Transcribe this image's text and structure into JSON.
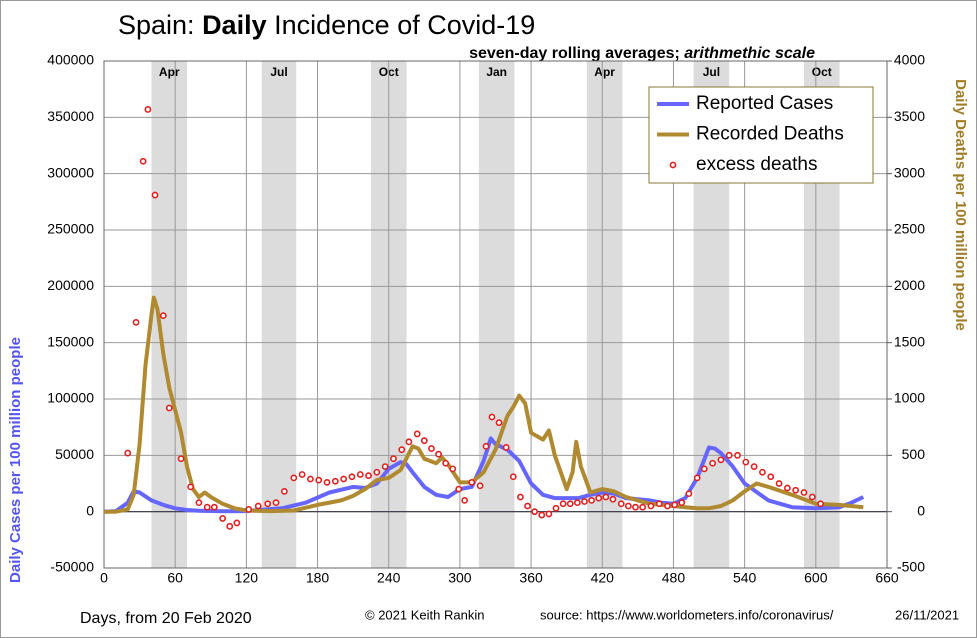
{
  "chart_data": {
    "type": "line",
    "title_parts": [
      "Spain: ",
      "Daily",
      " Incidence of Covid-19"
    ],
    "subtitle_parts": [
      "seven-day rolling averages; ",
      "arithmethic scale"
    ],
    "xlabel": "Days, from 20 Feb 2020",
    "ylabel": "Daily Cases per 100 million people",
    "y2label": "Daily Deaths per 100 million people",
    "footer": [
      "© 2021  Keith Rankin",
      "source:  https://www.worldometers.info/coronavirus/",
      "26/11/2021"
    ],
    "xlim": [
      0,
      660
    ],
    "xticks": [
      0,
      60,
      120,
      180,
      240,
      300,
      360,
      420,
      480,
      540,
      600,
      660
    ],
    "ylim": [
      -50000,
      400000
    ],
    "yticks": [
      -50000,
      0,
      50000,
      100000,
      150000,
      200000,
      250000,
      300000,
      350000,
      400000
    ],
    "y2lim": [
      -500,
      4000
    ],
    "y2ticks": [
      -500,
      0,
      500,
      1000,
      1500,
      2000,
      2500,
      3000,
      3500,
      4000
    ],
    "grid": true,
    "legend": "upper right",
    "bands": [
      {
        "label": "Apr",
        "start": 40,
        "end": 70
      },
      {
        "label": "Jul",
        "start": 133,
        "end": 162
      },
      {
        "label": "Oct",
        "start": 225,
        "end": 255
      },
      {
        "label": "Jan",
        "start": 316,
        "end": 346
      },
      {
        "label": "Apr",
        "start": 407,
        "end": 437
      },
      {
        "label": "Jul",
        "start": 497,
        "end": 527
      },
      {
        "label": "Oct",
        "start": 590,
        "end": 620
      }
    ],
    "series": [
      {
        "name": "Reported Cases",
        "color": "#6666ff",
        "kind": "line",
        "x": [
          0,
          10,
          20,
          25,
          30,
          40,
          50,
          60,
          70,
          80,
          100,
          120,
          130,
          150,
          170,
          190,
          210,
          220,
          230,
          240,
          250,
          255,
          260,
          270,
          280,
          290,
          300,
          310,
          320,
          326,
          330,
          340,
          350,
          360,
          370,
          380,
          400,
          410,
          420,
          430,
          440,
          460,
          470,
          480,
          490,
          500,
          510,
          515,
          520,
          530,
          540,
          560,
          580,
          600,
          620,
          630,
          640
        ],
        "values": [
          0,
          500,
          8000,
          18000,
          17000,
          10000,
          6000,
          3000,
          1500,
          800,
          300,
          500,
          1500,
          3000,
          8000,
          17000,
          22000,
          21000,
          25000,
          38000,
          44000,
          42000,
          35000,
          22000,
          15000,
          13000,
          20000,
          22000,
          45000,
          65000,
          60000,
          55000,
          45000,
          25000,
          15000,
          12000,
          12000,
          15000,
          17000,
          16000,
          12000,
          10000,
          8000,
          7000,
          12000,
          30000,
          57000,
          56000,
          52000,
          40000,
          25000,
          10000,
          4000,
          3000,
          4000,
          8000,
          13000
        ]
      },
      {
        "name": "Recorded Deaths",
        "color": "#b08a30",
        "kind": "line",
        "axis": "y2",
        "x": [
          0,
          10,
          20,
          25,
          30,
          35,
          40,
          42,
          45,
          50,
          55,
          60,
          65,
          70,
          75,
          80,
          85,
          90,
          100,
          110,
          120,
          140,
          160,
          180,
          200,
          210,
          220,
          230,
          240,
          250,
          260,
          265,
          270,
          280,
          285,
          290,
          300,
          310,
          320,
          330,
          340,
          345,
          350,
          355,
          360,
          370,
          375,
          380,
          390,
          395,
          398,
          402,
          410,
          420,
          430,
          440,
          450,
          460,
          470,
          480,
          490,
          500,
          510,
          520,
          530,
          540,
          550,
          560,
          580,
          600,
          620,
          640
        ],
        "values": [
          0,
          0,
          20,
          150,
          600,
          1300,
          1750,
          1900,
          1800,
          1400,
          1100,
          900,
          700,
          400,
          200,
          130,
          170,
          130,
          70,
          30,
          10,
          5,
          10,
          60,
          100,
          140,
          200,
          280,
          300,
          370,
          580,
          560,
          470,
          430,
          480,
          420,
          260,
          260,
          350,
          550,
          850,
          930,
          1030,
          960,
          700,
          640,
          720,
          500,
          200,
          350,
          620,
          400,
          170,
          200,
          180,
          130,
          100,
          70,
          60,
          50,
          40,
          30,
          30,
          50,
          100,
          180,
          250,
          220,
          150,
          70,
          60,
          40
        ]
      },
      {
        "name": "excess deaths",
        "color": "#e02020",
        "kind": "scatter",
        "axis": "y2",
        "x": [
          20,
          27,
          33,
          37,
          43,
          50,
          55,
          65,
          73,
          80,
          87,
          93,
          100,
          106,
          112,
          122,
          130,
          138,
          145,
          152,
          160,
          167,
          174,
          181,
          188,
          195,
          202,
          209,
          216,
          223,
          230,
          237,
          244,
          251,
          257,
          264,
          270,
          276,
          282,
          288,
          294,
          299,
          304,
          310,
          317,
          322,
          327,
          333,
          339,
          345,
          351,
          357,
          363,
          369,
          375,
          381,
          387,
          393,
          399,
          405,
          411,
          417,
          423,
          429,
          436,
          442,
          448,
          454,
          461,
          468,
          475,
          481,
          487,
          493,
          500,
          506,
          513,
          520,
          527,
          534,
          541,
          548,
          555,
          562,
          569,
          576,
          583,
          590,
          597,
          604
        ],
        "values": [
          520,
          1680,
          3110,
          3570,
          2810,
          1740,
          920,
          470,
          220,
          80,
          40,
          40,
          -60,
          -130,
          -100,
          20,
          50,
          70,
          80,
          180,
          300,
          330,
          290,
          280,
          260,
          270,
          290,
          310,
          330,
          320,
          350,
          400,
          470,
          550,
          620,
          690,
          630,
          560,
          510,
          430,
          380,
          200,
          100,
          260,
          230,
          580,
          840,
          790,
          570,
          310,
          130,
          50,
          0,
          -30,
          -20,
          30,
          70,
          70,
          80,
          90,
          100,
          120,
          130,
          110,
          70,
          50,
          40,
          40,
          50,
          70,
          50,
          60,
          80,
          160,
          300,
          380,
          430,
          460,
          500,
          500,
          440,
          400,
          350,
          310,
          250,
          210,
          190,
          170,
          130,
          70
        ]
      }
    ]
  }
}
